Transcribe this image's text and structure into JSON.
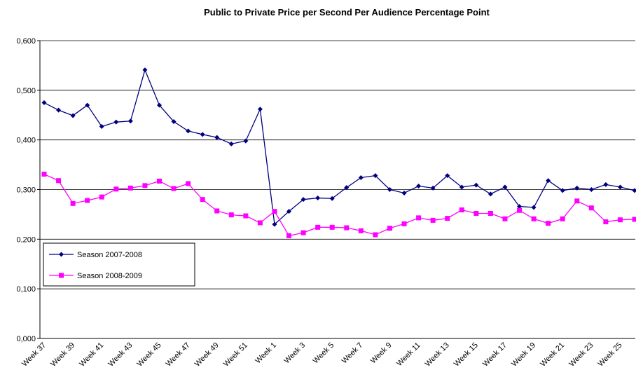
{
  "chart_data": {
    "type": "line",
    "title": "Public to Private Price per Second Per Audience Percentage Point",
    "categories": [
      "Week 37",
      null,
      "Week 39",
      null,
      "Week 41",
      null,
      "Week 43",
      null,
      "Week 45",
      null,
      "Week 47",
      null,
      "Week 49",
      null,
      "Week 51",
      null,
      "Week 1",
      null,
      "Week 3",
      null,
      "Week 5",
      null,
      "Week 7",
      null,
      "Week 9",
      null,
      "Week 11",
      null,
      "Week 13",
      null,
      "Week 15",
      null,
      "Week 17",
      null,
      "Week 19",
      null,
      "Week 21",
      null,
      "Week 23",
      null,
      "Week 25",
      null
    ],
    "series": [
      {
        "name": "Season 2007-2008",
        "color": "#000080",
        "marker": "diamond",
        "values": [
          0.475,
          0.46,
          0.449,
          0.47,
          0.427,
          0.436,
          0.438,
          0.541,
          0.47,
          0.437,
          0.418,
          0.411,
          0.405,
          0.392,
          0.398,
          0.462,
          0.23,
          0.256,
          0.28,
          0.283,
          0.282,
          0.304,
          0.324,
          0.328,
          0.3,
          0.293,
          0.307,
          0.303,
          0.328,
          0.305,
          0.309,
          0.291,
          0.305,
          0.266,
          0.264,
          0.318,
          0.298,
          0.303,
          0.3,
          0.31,
          0.305,
          0.298
        ]
      },
      {
        "name": "Season 2008-2009",
        "color": "#ff00ff",
        "marker": "square",
        "values": [
          0.331,
          0.318,
          0.272,
          0.278,
          0.285,
          0.301,
          0.303,
          0.308,
          0.317,
          0.302,
          0.312,
          0.28,
          0.257,
          0.249,
          0.247,
          0.233,
          0.256,
          0.207,
          0.213,
          0.224,
          0.224,
          0.223,
          0.217,
          0.209,
          0.222,
          0.231,
          0.243,
          0.238,
          0.242,
          0.259,
          0.252,
          0.252,
          0.241,
          0.258,
          0.241,
          0.232,
          0.241,
          0.277,
          0.263,
          0.235,
          0.239,
          0.24
        ]
      }
    ],
    "ylim": [
      0,
      0.6
    ],
    "yticks": [
      {
        "value": 0,
        "label": "0,000"
      },
      {
        "value": 0.1,
        "label": "0,100"
      },
      {
        "value": 0.2,
        "label": "0,200"
      },
      {
        "value": 0.3,
        "label": "0,300"
      },
      {
        "value": 0.4,
        "label": "0,400"
      },
      {
        "value": 0.5,
        "label": "0,500"
      },
      {
        "value": 0.6,
        "label": "0,600"
      }
    ],
    "grid": true,
    "legend": "left"
  }
}
